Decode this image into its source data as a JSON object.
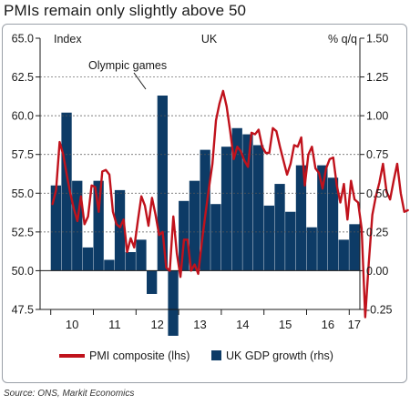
{
  "title": "PMIs remain only slightly above 50",
  "source": "Source: ONS, Markit Economics",
  "chart_data": {
    "type": "bar+line",
    "panel_label": "UK",
    "left_axis_label": "Index",
    "right_axis_label": "% q/q",
    "annotation": "Olympic games",
    "left_ylim": [
      47.5,
      65.0
    ],
    "right_ylim": [
      -0.25,
      1.5
    ],
    "left_ticks": [
      "47.5",
      "50.0",
      "52.5",
      "55.0",
      "57.5",
      "60.0",
      "62.5",
      "65.0"
    ],
    "right_ticks": [
      "-0.25",
      "0.00",
      "0.25",
      "0.50",
      "0.75",
      "1.00",
      "1.25",
      "1.50"
    ],
    "x_labels": [
      "10",
      "11",
      "12",
      "13",
      "14",
      "15",
      "16",
      "17"
    ],
    "colors": {
      "pmi_line": "#c0121c",
      "gdp_bar": "#0d3b66",
      "axis": "#1a1a1a"
    },
    "legend": [
      "PMI composite (lhs)",
      "UK GDP growth (rhs)"
    ],
    "gdp_quarters": [
      "2010Q1",
      "2010Q2",
      "2010Q3",
      "2010Q4",
      "2011Q1",
      "2011Q2",
      "2011Q3",
      "2011Q4",
      "2012Q1",
      "2012Q2",
      "2012Q3",
      "2012Q4",
      "2013Q1",
      "2013Q2",
      "2013Q3",
      "2013Q4",
      "2014Q1",
      "2014Q2",
      "2014Q3",
      "2014Q4",
      "2015Q1",
      "2015Q2",
      "2015Q3",
      "2015Q4",
      "2016Q1",
      "2016Q2",
      "2016Q3",
      "2016Q4",
      "2017Q1"
    ],
    "gdp_values": [
      0.55,
      1.02,
      0.58,
      0.15,
      0.58,
      0.07,
      0.52,
      0.12,
      0.2,
      -0.15,
      1.13,
      -0.42,
      0.45,
      0.58,
      0.78,
      0.43,
      0.8,
      0.92,
      0.88,
      0.81,
      0.42,
      0.56,
      0.38,
      0.68,
      0.28,
      0.68,
      0.6,
      0.2,
      0.3
    ],
    "pmi_series_start": "2010-01",
    "pmi_values": [
      54.3,
      55.2,
      58.3,
      57.5,
      56.2,
      55.0,
      54.0,
      53.2,
      54.8,
      53.0,
      53.5,
      55.5,
      55.4,
      53.8,
      56.4,
      56.5,
      56.2,
      53.8,
      53.0,
      52.8,
      53.3,
      51.2,
      52.1,
      51.5,
      53.2,
      54.8,
      54.2,
      52.9,
      54.7,
      53.6,
      52.3,
      52.5,
      50.2,
      50.0,
      53.5,
      51.1,
      49.6,
      52.0,
      52.0,
      50.0,
      50.4,
      49.8,
      51.8,
      53.6,
      55.3,
      56.9,
      59.7,
      60.8,
      61.6,
      60.6,
      59.0,
      57.2,
      58.0,
      57.7,
      57.1,
      56.7,
      58.9,
      58.8,
      59.1,
      58.0,
      57.6,
      57.6,
      59.2,
      59.0,
      58.0,
      57.1,
      56.2,
      56.9,
      58.1,
      58.0,
      58.6,
      55.5,
      57.5,
      58.0,
      56.6,
      56.3,
      55.3,
      56.6,
      57.2,
      57.3,
      55.5,
      54.4,
      55.6,
      53.3,
      55.8,
      54.6,
      54.4,
      52.7,
      47.0,
      50.5,
      53.6,
      54.8,
      55.7,
      56.9,
      55.1,
      54.6,
      55.8,
      56.9,
      55.0,
      53.8,
      53.9
    ]
  }
}
